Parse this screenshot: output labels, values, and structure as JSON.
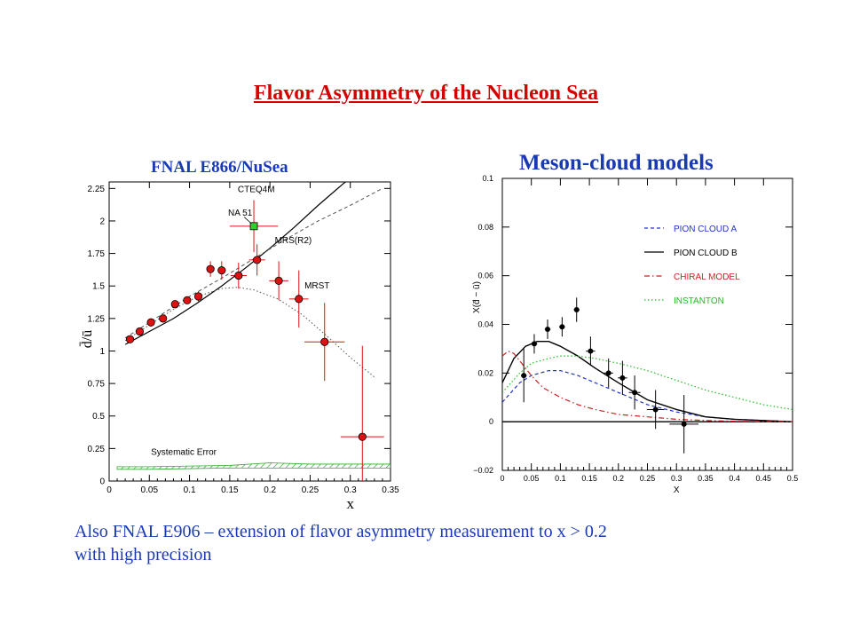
{
  "title": "Flavor Asymmetry of the Nucleon Sea",
  "left_heading": "FNAL E866/NuSea",
  "right_heading": "Meson-cloud models",
  "footnote": {
    "line1": "Also FNAL E906 – extension of flavor asymmetry measurement to x > 0.2",
    "line2": "with high precision"
  },
  "colors": {
    "title": "#d40000",
    "heading": "#1a3ab5",
    "data_point": "#dd1111",
    "error_bar": "#dd1111",
    "na51": "#33cc33"
  },
  "chart_data": [
    {
      "type": "scatter",
      "xlabel": "x",
      "ylabel": "d̄/ū",
      "xlim": [
        0,
        0.35
      ],
      "ylim": [
        0,
        2.3
      ],
      "x_ticks": [
        "0",
        "0.05",
        "0.1",
        "0.15",
        "0.2",
        "0.25",
        "0.3",
        "0.35"
      ],
      "y_ticks": [
        "0",
        "0.25",
        "0.5",
        "0.75",
        "1",
        "1.25",
        "1.5",
        "1.75",
        "2",
        "2.25"
      ],
      "series": [
        {
          "name": "E866",
          "points": [
            {
              "x": 0.026,
              "y": 1.09,
              "xerr": 0.004,
              "yerr": 0.03
            },
            {
              "x": 0.038,
              "y": 1.15,
              "xerr": 0.004,
              "yerr": 0.03
            },
            {
              "x": 0.052,
              "y": 1.22,
              "xerr": 0.004,
              "yerr": 0.03
            },
            {
              "x": 0.067,
              "y": 1.25,
              "xerr": 0.004,
              "yerr": 0.03
            },
            {
              "x": 0.082,
              "y": 1.36,
              "xerr": 0.004,
              "yerr": 0.03
            },
            {
              "x": 0.097,
              "y": 1.39,
              "xerr": 0.004,
              "yerr": 0.03
            },
            {
              "x": 0.111,
              "y": 1.42,
              "xerr": 0.004,
              "yerr": 0.04
            },
            {
              "x": 0.126,
              "y": 1.63,
              "xerr": 0.005,
              "yerr": 0.06
            },
            {
              "x": 0.14,
              "y": 1.62,
              "xerr": 0.005,
              "yerr": 0.07
            },
            {
              "x": 0.161,
              "y": 1.58,
              "xerr": 0.01,
              "yerr": 0.1
            },
            {
              "x": 0.184,
              "y": 1.7,
              "xerr": 0.01,
              "yerr": 0.12
            },
            {
              "x": 0.211,
              "y": 1.54,
              "xerr": 0.012,
              "yerr": 0.15
            },
            {
              "x": 0.236,
              "y": 1.4,
              "xerr": 0.012,
              "yerr": 0.22
            },
            {
              "x": 0.268,
              "y": 1.07,
              "xerr": 0.025,
              "yerr": 0.3
            },
            {
              "x": 0.315,
              "y": 0.34,
              "xerr": 0.027,
              "yerr": 0.7
            }
          ]
        },
        {
          "name": "NA 51",
          "points": [
            {
              "x": 0.18,
              "y": 1.96,
              "xerr": 0.03,
              "yerr": 0.2
            }
          ]
        }
      ],
      "curves": [
        {
          "name": "CTEQ4M",
          "style": "solid",
          "x": [
            0.02,
            0.05,
            0.08,
            0.11,
            0.14,
            0.17,
            0.2,
            0.23,
            0.26,
            0.29,
            0.31
          ],
          "y": [
            1.05,
            1.15,
            1.25,
            1.37,
            1.5,
            1.64,
            1.79,
            1.95,
            2.12,
            2.28,
            2.38
          ]
        },
        {
          "name": "MRS(R2)",
          "style": "dashed",
          "x": [
            0.02,
            0.06,
            0.1,
            0.14,
            0.18,
            0.22,
            0.26,
            0.3,
            0.34
          ],
          "y": [
            1.1,
            1.26,
            1.42,
            1.56,
            1.71,
            1.86,
            2.0,
            2.12,
            2.25
          ]
        },
        {
          "name": "MRST",
          "style": "dotted",
          "x": [
            0.02,
            0.05,
            0.08,
            0.11,
            0.14,
            0.16,
            0.18,
            0.21,
            0.24,
            0.27,
            0.3,
            0.33
          ],
          "y": [
            1.08,
            1.2,
            1.32,
            1.42,
            1.48,
            1.49,
            1.47,
            1.4,
            1.28,
            1.12,
            0.95,
            0.8
          ]
        }
      ],
      "systematic_error": {
        "label": "Systematic Error",
        "x": [
          0.01,
          0.05,
          0.1,
          0.15,
          0.2,
          0.25,
          0.3,
          0.35
        ],
        "low": [
          0.09,
          0.09,
          0.095,
          0.1,
          0.1,
          0.1,
          0.1,
          0.1
        ],
        "high": [
          0.11,
          0.11,
          0.115,
          0.12,
          0.14,
          0.13,
          0.13,
          0.13
        ]
      },
      "annotations": [
        "CTEQ4M",
        "NA 51",
        "MRS(R2)",
        "MRST",
        "Systematic Error"
      ]
    },
    {
      "type": "line",
      "xlabel": "X",
      "ylabel": "X(d̄ − ū)",
      "xlim": [
        0,
        0.5
      ],
      "ylim": [
        -0.02,
        0.1
      ],
      "x_ticks": [
        "0",
        "0.05",
        "0.1",
        "0.15",
        "0.2",
        "0.25",
        "0.3",
        "0.35",
        "0.4",
        "0.45",
        "0.5"
      ],
      "y_ticks": [
        "−0.02",
        "0",
        "0.02",
        "0.04",
        "0.06",
        "0.08",
        "0.1"
      ],
      "legend_position": "top-right",
      "series": [
        {
          "name": "PION CLOUD A",
          "style": "dashed",
          "color": "#2233cc",
          "x": [
            0.0,
            0.03,
            0.05,
            0.08,
            0.1,
            0.13,
            0.16,
            0.2,
            0.25,
            0.3,
            0.35,
            0.4,
            0.45,
            0.5
          ],
          "y": [
            0.008,
            0.016,
            0.019,
            0.021,
            0.021,
            0.019,
            0.016,
            0.012,
            0.007,
            0.004,
            0.002,
            0.001,
            0.0005,
            0.0
          ]
        },
        {
          "name": "PION CLOUD B",
          "style": "solid",
          "color": "#000000",
          "x": [
            0.0,
            0.02,
            0.04,
            0.06,
            0.08,
            0.1,
            0.13,
            0.16,
            0.2,
            0.25,
            0.3,
            0.35,
            0.4,
            0.45,
            0.5
          ],
          "y": [
            0.016,
            0.026,
            0.031,
            0.033,
            0.033,
            0.031,
            0.027,
            0.022,
            0.016,
            0.009,
            0.005,
            0.002,
            0.001,
            0.0005,
            0.0
          ]
        },
        {
          "name": "CHIRAL MODEL",
          "style": "dashdot",
          "color": "#cc2222",
          "x": [
            0.0,
            0.01,
            0.02,
            0.03,
            0.05,
            0.07,
            0.1,
            0.13,
            0.16,
            0.2,
            0.25,
            0.3,
            0.35,
            0.4,
            0.5
          ],
          "y": [
            0.027,
            0.029,
            0.028,
            0.025,
            0.019,
            0.014,
            0.01,
            0.007,
            0.005,
            0.003,
            0.002,
            0.001,
            0.0005,
            0.0002,
            0.0
          ]
        },
        {
          "name": "INSTANTON",
          "style": "dotted",
          "color": "#22bb22",
          "x": [
            0.0,
            0.03,
            0.05,
            0.08,
            0.1,
            0.13,
            0.16,
            0.2,
            0.25,
            0.3,
            0.35,
            0.4,
            0.45,
            0.5
          ],
          "y": [
            0.012,
            0.02,
            0.024,
            0.026,
            0.027,
            0.027,
            0.026,
            0.024,
            0.021,
            0.017,
            0.013,
            0.01,
            0.007,
            0.005
          ]
        }
      ],
      "data_points": [
        {
          "x": 0.037,
          "y": 0.019,
          "xerr": 0.005,
          "yerr": 0.011
        },
        {
          "x": 0.055,
          "y": 0.032,
          "xerr": 0.005,
          "yerr": 0.004
        },
        {
          "x": 0.078,
          "y": 0.038,
          "xerr": 0.005,
          "yerr": 0.004
        },
        {
          "x": 0.103,
          "y": 0.039,
          "xerr": 0.005,
          "yerr": 0.004
        },
        {
          "x": 0.128,
          "y": 0.046,
          "xerr": 0.005,
          "yerr": 0.005
        },
        {
          "x": 0.152,
          "y": 0.029,
          "xerr": 0.008,
          "yerr": 0.006
        },
        {
          "x": 0.183,
          "y": 0.02,
          "xerr": 0.008,
          "yerr": 0.006
        },
        {
          "x": 0.207,
          "y": 0.018,
          "xerr": 0.008,
          "yerr": 0.007
        },
        {
          "x": 0.228,
          "y": 0.012,
          "xerr": 0.01,
          "yerr": 0.007
        },
        {
          "x": 0.264,
          "y": 0.005,
          "xerr": 0.015,
          "yerr": 0.008
        },
        {
          "x": 0.313,
          "y": -0.001,
          "xerr": 0.025,
          "yerr": 0.012
        }
      ]
    }
  ]
}
